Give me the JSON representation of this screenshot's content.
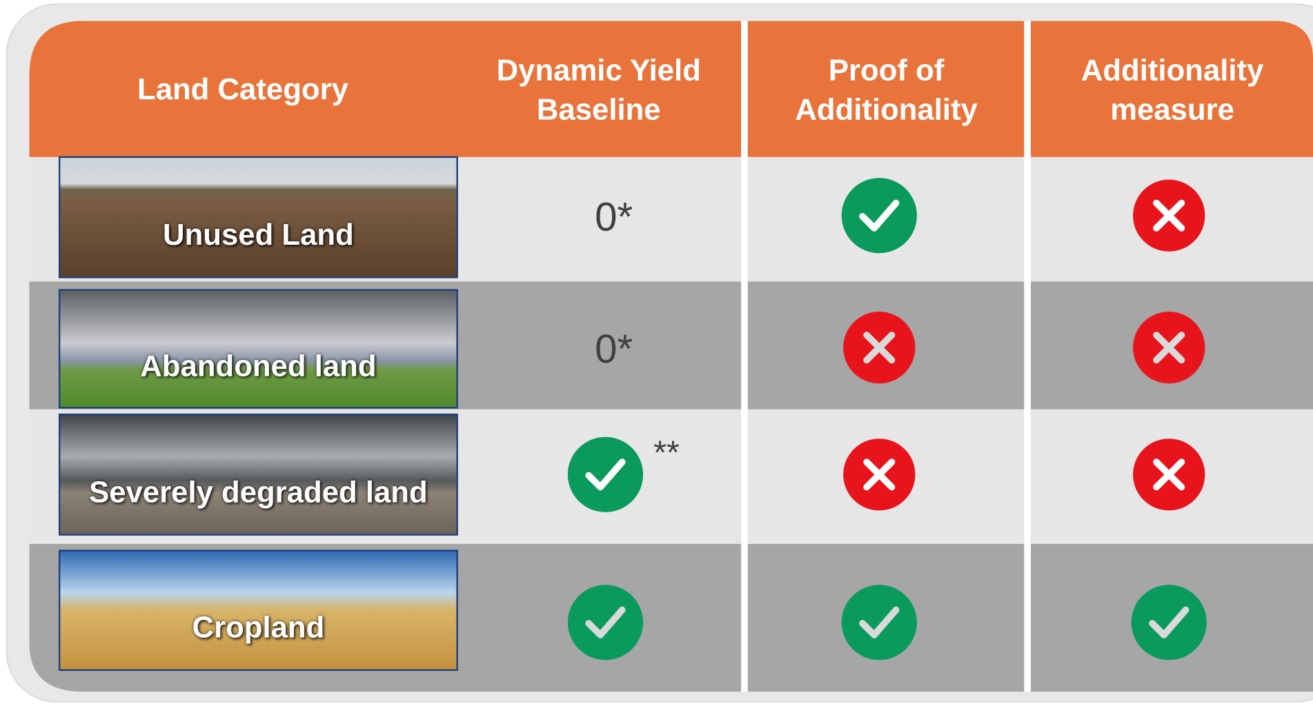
{
  "table": {
    "header": [
      "Land Category",
      "Dynamic Yield Baseline",
      "Proof of Additionality",
      "Additionality measure"
    ],
    "rows": [
      {
        "label": "Unused Land",
        "baseline": "0*"
      },
      {
        "label": "Abandoned land",
        "baseline": "0*"
      },
      {
        "label": "Severely degraded land",
        "note": "**"
      },
      {
        "label": "Cropland"
      }
    ]
  }
}
